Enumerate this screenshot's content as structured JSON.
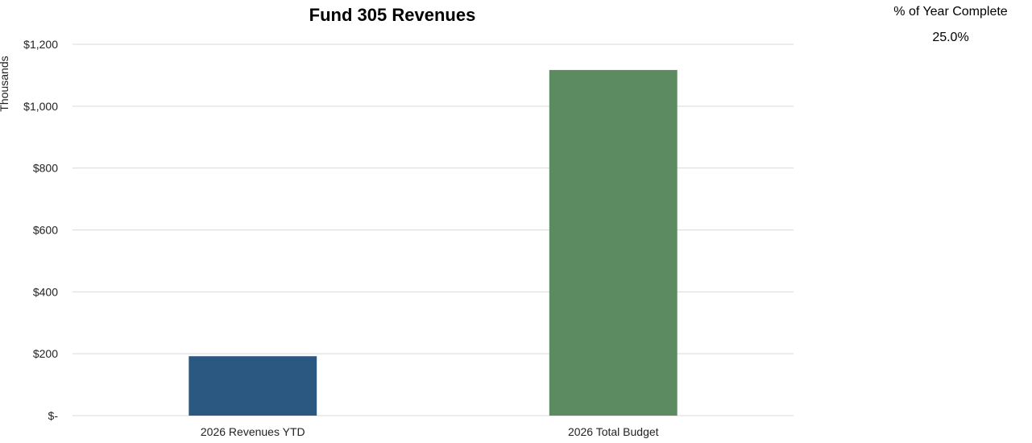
{
  "chart_data": {
    "type": "bar",
    "title": "Fund 305 Revenues",
    "xlabel": "",
    "ylabel": "Thousands",
    "categories": [
      "2026 Revenues YTD",
      "2026 Total Budget"
    ],
    "values": [
      192,
      1117
    ],
    "bar_colors": [
      "#2b5880",
      "#5d8b61"
    ],
    "ylim": [
      0,
      1200
    ],
    "yticks": [
      0,
      200,
      400,
      600,
      800,
      1000,
      1200
    ],
    "ytick_labels": [
      "$-",
      "$200",
      "$400",
      "$600",
      "$800",
      "$1,000",
      "$1,200"
    ],
    "grid": true,
    "legend": "none"
  },
  "year_complete": {
    "label": "% of Year Complete",
    "value": "25.0%"
  },
  "colors": {
    "gridline": "#d9d9d9",
    "text": "#222222"
  }
}
